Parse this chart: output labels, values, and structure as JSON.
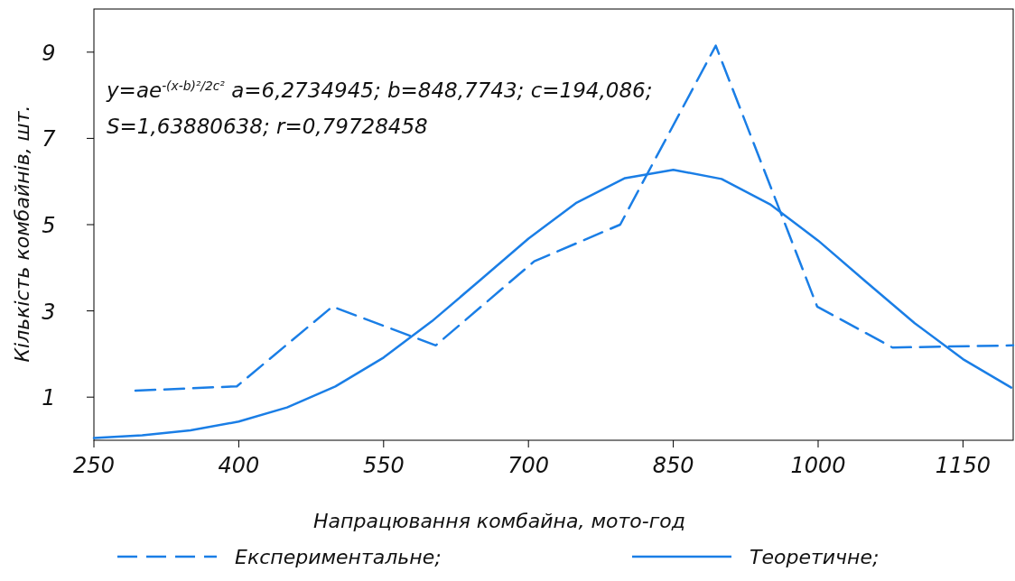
{
  "chart_data": {
    "type": "line",
    "xlabel": "Напрацювання комбайна, мото-год",
    "ylabel": "Кількість комбайнів, шт.",
    "xlim": [
      250,
      1202
    ],
    "xticks": [
      250,
      400,
      550,
      700,
      850,
      1000,
      1150
    ],
    "ylim": [
      0,
      10
    ],
    "yticks": [
      1,
      3,
      5,
      7,
      9
    ],
    "grid": false,
    "legend": "bottom",
    "marker": "none",
    "annotations": [
      "y=ae$^{-(x-b)²/2c²}$ a=6,2734945; b=848,7743; c=194,086;",
      "S=1,63880638; r=0,79728458"
    ],
    "series": [
      {
        "name": "Експериментальне;",
        "color": "#1a7ee6",
        "line_style": "dashed",
        "x": [
          293,
          398,
          497,
          604,
          706,
          795,
          894,
          999,
          1077,
          1202
        ],
        "values": [
          1.15,
          1.25,
          3.1,
          2.2,
          4.15,
          5.0,
          9.15,
          3.1,
          2.15,
          2.2
        ]
      },
      {
        "name": "Теоретичне;",
        "color": "#1a7ee6",
        "line_style": "solid",
        "x": [
          250,
          300,
          350,
          400,
          450,
          500,
          550,
          600,
          650,
          700,
          750,
          800,
          850,
          900,
          950,
          1000,
          1050,
          1100,
          1150,
          1200
        ],
        "values": [
          0.054,
          0.115,
          0.231,
          0.433,
          0.76,
          1.248,
          1.918,
          2.759,
          3.713,
          4.677,
          5.511,
          6.078,
          6.273,
          6.059,
          5.475,
          4.631,
          3.665,
          2.714,
          1.881,
          1.22
        ]
      }
    ]
  }
}
